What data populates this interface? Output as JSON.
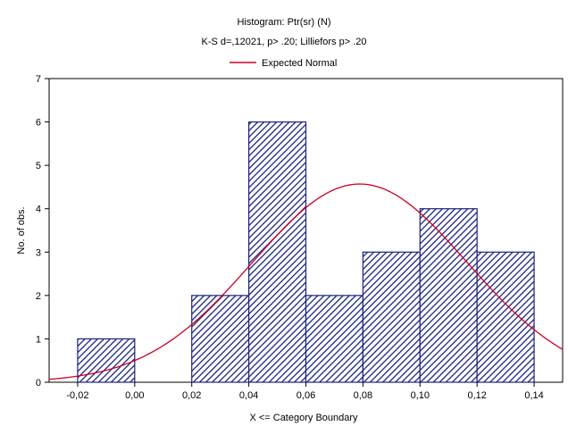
{
  "chart_data": {
    "type": "bar",
    "title": "Histogram: Ptr(sr) (N)",
    "subtitle": "K-S d=,12021, p> .20; Lilliefors p> .20",
    "xlabel": "X <= Category Boundary",
    "ylabel": "No. of obs.",
    "xlim": [
      -0.03,
      0.15
    ],
    "ylim": [
      0,
      7
    ],
    "x_ticks": [
      -0.02,
      0.0,
      0.02,
      0.04,
      0.06,
      0.08,
      0.1,
      0.12,
      0.14
    ],
    "x_tick_labels": [
      "-0,02",
      "0,00",
      "0,02",
      "0,04",
      "0,06",
      "0,08",
      "0,10",
      "0,12",
      "0,14"
    ],
    "y_ticks": [
      0,
      1,
      2,
      3,
      4,
      5,
      6,
      7
    ],
    "y_tick_labels": [
      "0",
      "1",
      "2",
      "3",
      "4",
      "5",
      "6",
      "7"
    ],
    "bins": [
      {
        "from": -0.02,
        "to": 0.0,
        "count": 1
      },
      {
        "from": 0.0,
        "to": 0.02,
        "count": 0
      },
      {
        "from": 0.02,
        "to": 0.04,
        "count": 2
      },
      {
        "from": 0.04,
        "to": 0.06,
        "count": 6
      },
      {
        "from": 0.06,
        "to": 0.08,
        "count": 2
      },
      {
        "from": 0.08,
        "to": 0.1,
        "count": 3
      },
      {
        "from": 0.1,
        "to": 0.12,
        "count": 4
      },
      {
        "from": 0.12,
        "to": 0.14,
        "count": 3
      }
    ],
    "expected_normal": {
      "name": "Expected Normal",
      "mean": 0.0789,
      "sd": 0.0375,
      "peak": 4.57,
      "color": "#cc0022"
    },
    "legend": {
      "position": "top-center",
      "entries": [
        "Expected Normal"
      ]
    },
    "bar_color": "#1a237e",
    "grid": false
  }
}
